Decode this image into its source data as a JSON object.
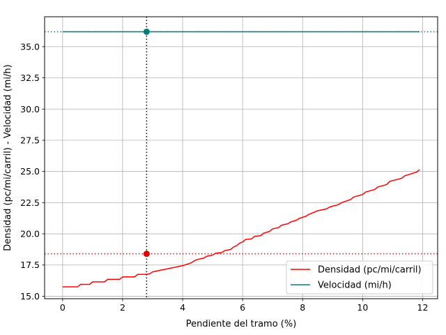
{
  "chart_data": {
    "type": "line",
    "xlabel": "Pendiente del tramo (%)",
    "ylabel": "Densidad (pc/mi/carril) - Velocidad (mi/h)",
    "xlim": [
      -0.6,
      12.5
    ],
    "ylim": [
      14.8,
      37.4
    ],
    "x_ticks": [
      0,
      2,
      4,
      6,
      8,
      10,
      12
    ],
    "x_tick_labels": [
      "0",
      "2",
      "4",
      "6",
      "8",
      "10",
      "12"
    ],
    "y_ticks": [
      15.0,
      17.5,
      20.0,
      22.5,
      25.0,
      27.5,
      30.0,
      32.5,
      35.0
    ],
    "y_tick_labels": [
      "15.0",
      "17.5",
      "20.0",
      "22.5",
      "25.0",
      "27.5",
      "30.0",
      "32.5",
      "35.0"
    ],
    "grid": true,
    "legend_position": "lower-right",
    "series": [
      {
        "name": "Densidad (pc/mi/carril)",
        "color": "#ff0000",
        "style": "step",
        "x": [
          0.0,
          0.5,
          0.6,
          0.9,
          1.0,
          1.4,
          1.5,
          1.9,
          2.0,
          2.4,
          2.5,
          2.8,
          2.9,
          3.0,
          3.1,
          3.4,
          3.5,
          3.9,
          4.0,
          4.2,
          4.3,
          4.4,
          4.5,
          4.7,
          4.8,
          5.0,
          5.1,
          5.3,
          5.4,
          5.6,
          5.7,
          5.8,
          5.9,
          6.0,
          6.1,
          6.3,
          6.4,
          6.6,
          6.7,
          6.9,
          7.0,
          7.2,
          7.3,
          7.5,
          7.6,
          7.8,
          7.9,
          8.1,
          8.2,
          8.4,
          8.5,
          8.8,
          8.9,
          9.2,
          9.3,
          9.6,
          9.7,
          10.0,
          10.1,
          10.4,
          10.5,
          10.8,
          10.9,
          11.3,
          11.4,
          11.8,
          11.9
        ],
        "y": [
          15.75,
          15.75,
          15.95,
          15.95,
          16.15,
          16.15,
          16.35,
          16.35,
          16.55,
          16.55,
          16.75,
          16.75,
          16.8,
          16.95,
          17.0,
          17.15,
          17.2,
          17.4,
          17.45,
          17.6,
          17.7,
          17.85,
          17.95,
          18.05,
          18.2,
          18.3,
          18.45,
          18.5,
          18.65,
          18.75,
          18.95,
          19.05,
          19.25,
          19.35,
          19.55,
          19.6,
          19.8,
          19.85,
          20.05,
          20.2,
          20.4,
          20.5,
          20.7,
          20.8,
          20.95,
          21.1,
          21.25,
          21.4,
          21.55,
          21.75,
          21.85,
          22.0,
          22.15,
          22.35,
          22.5,
          22.75,
          22.95,
          23.15,
          23.35,
          23.55,
          23.75,
          23.95,
          24.2,
          24.45,
          24.65,
          24.95,
          25.15
        ]
      },
      {
        "name": "Velocidad (mi/h)",
        "color": "#008080",
        "style": "line",
        "x": [
          0.0,
          11.9
        ],
        "y": [
          36.2,
          36.2
        ]
      }
    ],
    "reference_lines": {
      "vertical_x": 2.8,
      "density_y": 18.4,
      "speed_y": 36.2
    },
    "markers": [
      {
        "x": 2.8,
        "y": 18.4,
        "color": "#e00000"
      },
      {
        "x": 2.8,
        "y": 36.2,
        "color": "#007b7b"
      }
    ]
  }
}
